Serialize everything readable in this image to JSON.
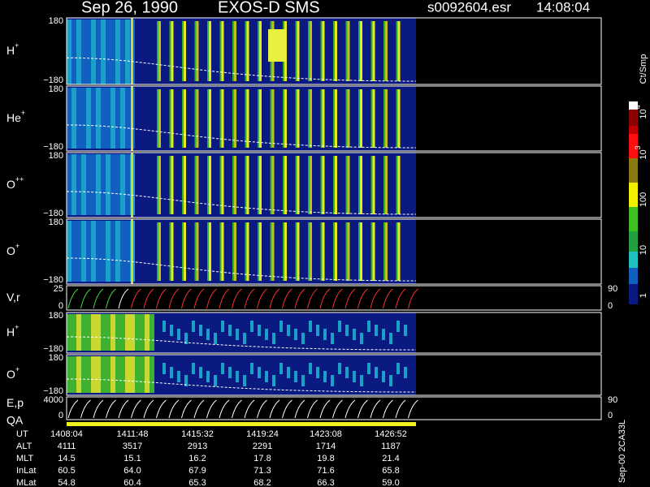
{
  "header": {
    "date": "Sep 26, 1990",
    "instrument": "EXOS-D SMS",
    "file": "s0092604.esr",
    "time": "14:08:04"
  },
  "panels": [
    {
      "label": "H",
      "sup": "+",
      "top": "180",
      "bottom": "−180"
    },
    {
      "label": "He",
      "sup": "+",
      "top": "180",
      "bottom": "−180"
    },
    {
      "label": "O",
      "sup": "++",
      "top": "180",
      "bottom": "−180"
    },
    {
      "label": "O",
      "sup": "+",
      "top": "180",
      "bottom": "−180"
    },
    {
      "label": "V,r",
      "top": "25",
      "bottom": "0",
      "right_top": "90",
      "right_bottom": "0"
    },
    {
      "label": "H",
      "sup": "+",
      "top": "180",
      "bottom": "−180"
    },
    {
      "label": "O",
      "sup": "+",
      "top": "180",
      "bottom": "−180"
    },
    {
      "label": "E,p",
      "top": "4000",
      "bottom": "0",
      "right_top": "90",
      "right_bottom": "0"
    }
  ],
  "qa_label": "QA",
  "colorbar": {
    "unit": "Ct/Smp",
    "labels": [
      {
        "base": "10",
        "exp": "4"
      },
      {
        "base": "10",
        "exp": "3"
      },
      {
        "base": "100"
      },
      {
        "base": "10"
      },
      {
        "base": "1"
      }
    ]
  },
  "table": {
    "rows": [
      {
        "label": "UT",
        "values": [
          "1408:04",
          "1411:48",
          "1415:32",
          "1419:24",
          "1423:08",
          "1426:52"
        ]
      },
      {
        "label": "ALT",
        "values": [
          "4111",
          "3517",
          "2913",
          "2291",
          "1714",
          "1187"
        ]
      },
      {
        "label": "MLT",
        "values": [
          "14.5",
          "15.1",
          "16.2",
          "17.8",
          "19.8",
          "21.4"
        ]
      },
      {
        "label": "InLat",
        "values": [
          "60.5",
          "64.0",
          "67.9",
          "71.3",
          "71.6",
          "65.8"
        ]
      },
      {
        "label": "MLat",
        "values": [
          "54.8",
          "60.4",
          "65.3",
          "68.2",
          "66.3",
          "59.0"
        ]
      }
    ]
  },
  "footer": "Sep-00 2CA33L"
}
